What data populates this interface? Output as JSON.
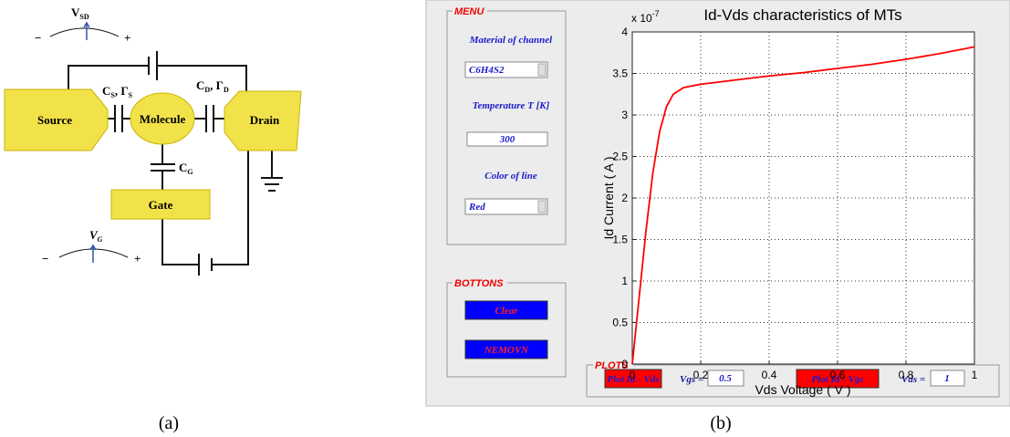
{
  "diagram": {
    "vsd": {
      "base": "V",
      "sub": "SD"
    },
    "vsd_minus": "−",
    "vsd_plus": "+",
    "source": "Source",
    "molecule": "Molecule",
    "drain": "Drain",
    "cs": {
      "c": "C",
      "c_sub": "S",
      "g": ", Γ",
      "g_sub": "S"
    },
    "cd": {
      "c": "C",
      "c_sub": "D",
      "g": ", Γ",
      "g_sub": "D"
    },
    "cg": {
      "base": "C",
      "sub": "G"
    },
    "gate": "Gate",
    "vg": {
      "base": "V",
      "sub": "G"
    },
    "vg_minus": "−",
    "vg_plus": "+",
    "caption": "(a)"
  },
  "gui": {
    "menu": {
      "title": "MENU",
      "material_label": "Material of channel",
      "material_value": "C6H4S2",
      "temperature_label": "Temperature T [K]",
      "temperature_value": "300",
      "color_label": "Color of line",
      "color_value": "Red"
    },
    "buttons_panel": {
      "title": "BOTTONS",
      "clear": "Clear",
      "nemovn": "NEMOVN"
    },
    "plots": {
      "title": "PLOTS",
      "plot_vds": "Plot Id - Vds",
      "vgs_label": "Vgs =",
      "vgs_value": "0.5",
      "plot_vgs": "Plot Id - Vgs",
      "vds_label": "Vds =",
      "vds_value": "1"
    },
    "caption": "(b)"
  },
  "chart_data": {
    "type": "line",
    "title": "Id-Vds characteristics of MTs",
    "x_label": "Vds Voltage ( V )",
    "y_label": "Id Current ( A )",
    "y_multiplier": {
      "base": "x 10",
      "exponent": "-7"
    },
    "x": [
      0,
      0.02,
      0.04,
      0.06,
      0.08,
      0.1,
      0.12,
      0.15,
      0.2,
      0.3,
      0.4,
      0.5,
      0.6,
      0.7,
      0.8,
      0.9,
      1.0
    ],
    "values": [
      0,
      0.8,
      1.6,
      2.3,
      2.8,
      3.1,
      3.25,
      3.33,
      3.37,
      3.42,
      3.47,
      3.51,
      3.56,
      3.61,
      3.67,
      3.74,
      3.82
    ],
    "color": "#ff0000",
    "xlim": [
      0,
      1
    ],
    "xticks": [
      0,
      0.2,
      0.4,
      0.6,
      0.8,
      1
    ],
    "ylim": [
      0,
      4
    ],
    "yticks": [
      0,
      0.5,
      1,
      1.5,
      2,
      2.5,
      3,
      3.5,
      4
    ],
    "grid": true
  }
}
